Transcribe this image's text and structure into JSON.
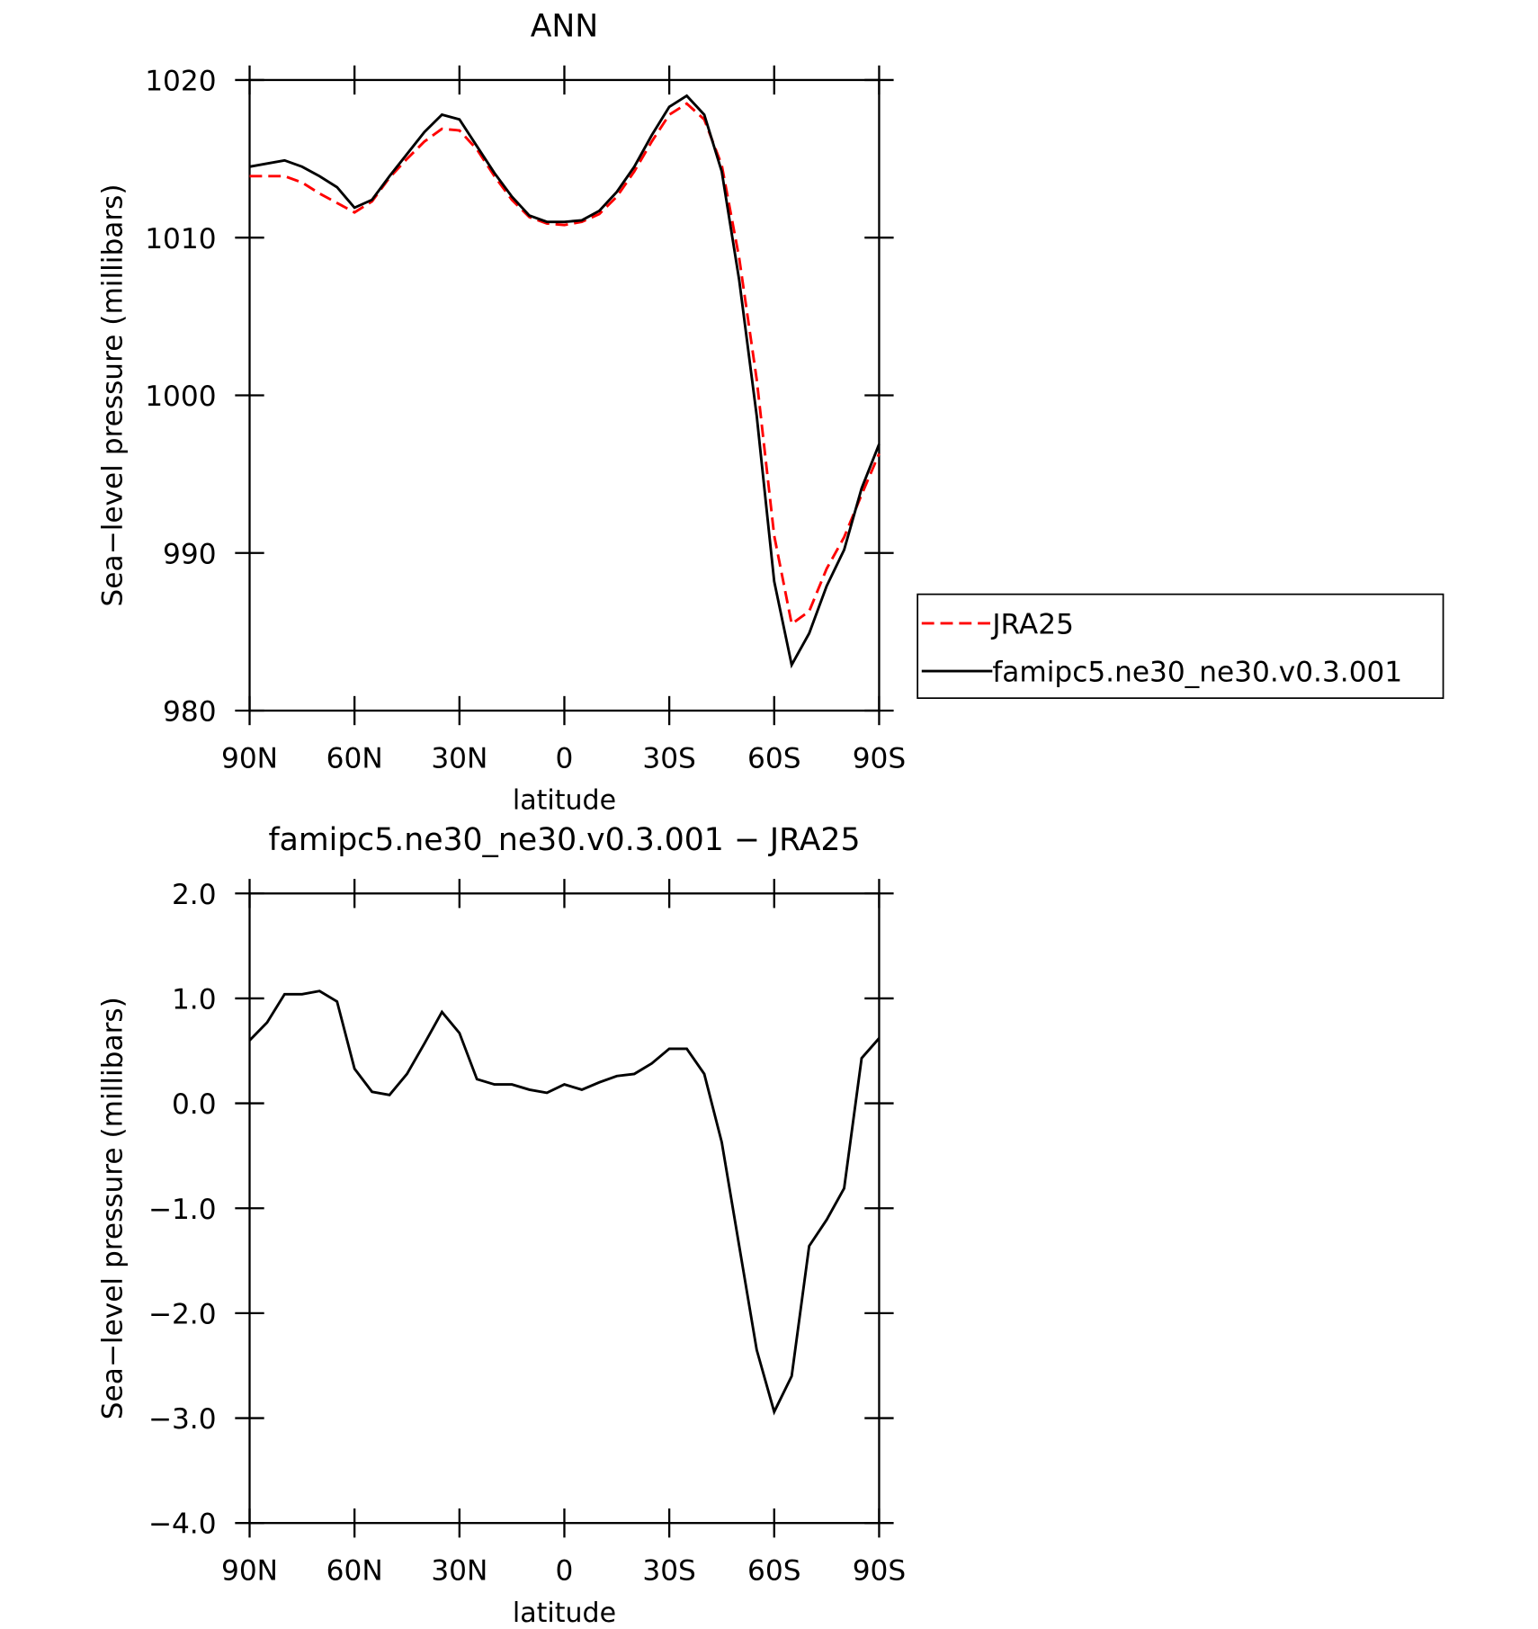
{
  "chart_data": [
    {
      "type": "line",
      "title": "ANN",
      "xlabel": "latitude",
      "ylabel": "Sea−level pressure (millibars)",
      "x": [
        90,
        85,
        80,
        75,
        70,
        65,
        60,
        55,
        50,
        45,
        40,
        35,
        30,
        25,
        20,
        15,
        10,
        5,
        0,
        -5,
        -10,
        -15,
        -20,
        -25,
        -30,
        -35,
        -40,
        -45,
        -50,
        -55,
        -60,
        -65,
        -70,
        -75,
        -80,
        -85,
        -90
      ],
      "series": [
        {
          "name": "JRA25",
          "color": "#ff0000",
          "dash": true,
          "values": [
            1013.9,
            1013.9,
            1013.9,
            1013.5,
            1012.8,
            1012.2,
            1011.6,
            1012.3,
            1013.8,
            1015.0,
            1016.1,
            1016.9,
            1016.8,
            1015.6,
            1013.9,
            1012.4,
            1011.3,
            1010.9,
            1010.8,
            1011.0,
            1011.5,
            1012.6,
            1014.2,
            1016.1,
            1017.8,
            1018.5,
            1017.5,
            1014.6,
            1008.7,
            1001.0,
            991.1,
            985.5,
            986.3,
            989.0,
            991.0,
            993.7,
            996.3
          ]
        },
        {
          "name": "famipc5.ne30_ne30.v0.3.001",
          "color": "#000000",
          "dash": false,
          "values": [
            1014.5,
            1014.7,
            1014.9,
            1014.5,
            1013.9,
            1013.2,
            1011.9,
            1012.4,
            1013.9,
            1015.3,
            1016.7,
            1017.8,
            1017.5,
            1015.8,
            1014.1,
            1012.6,
            1011.4,
            1011.0,
            1011.0,
            1011.1,
            1011.7,
            1012.9,
            1014.5,
            1016.5,
            1018.3,
            1019.0,
            1017.8,
            1014.2,
            1007.3,
            998.7,
            988.2,
            982.9,
            984.9,
            987.9,
            990.2,
            994.1,
            996.9
          ]
        }
      ],
      "xlim": [
        90,
        -90
      ],
      "xticks": [
        {
          "value": 90,
          "label": "90N"
        },
        {
          "value": 60,
          "label": "60N"
        },
        {
          "value": 30,
          "label": "30N"
        },
        0,
        {
          "value": -30,
          "label": "30S"
        },
        {
          "value": -60,
          "label": "60S"
        },
        {
          "value": -90,
          "label": "90S"
        }
      ],
      "ylim": [
        980,
        1020
      ],
      "yticks": [
        980,
        990,
        1000,
        1010,
        1020
      ],
      "legend": "right"
    },
    {
      "type": "line",
      "title": "famipc5.ne30_ne30.v0.3.001 − JRA25",
      "xlabel": "latitude",
      "ylabel": "Sea−level pressure (millibars)",
      "x": [
        90,
        85,
        80,
        75,
        70,
        65,
        60,
        55,
        50,
        45,
        40,
        35,
        30,
        25,
        20,
        15,
        10,
        5,
        0,
        -5,
        -10,
        -15,
        -20,
        -25,
        -30,
        -35,
        -40,
        -45,
        -50,
        -55,
        -60,
        -65,
        -70,
        -75,
        -80,
        -85,
        -90
      ],
      "series": [
        {
          "color": "#000000",
          "dash": false,
          "values": [
            0.6,
            0.77,
            1.04,
            1.04,
            1.07,
            0.97,
            0.33,
            0.11,
            0.08,
            0.28,
            0.57,
            0.87,
            0.67,
            0.23,
            0.18,
            0.18,
            0.13,
            0.1,
            0.18,
            0.13,
            0.2,
            0.26,
            0.28,
            0.38,
            0.52,
            0.52,
            0.28,
            -0.37,
            -1.36,
            -2.35,
            -2.94,
            -2.6,
            -1.36,
            -1.11,
            -0.81,
            0.43,
            0.62
          ]
        }
      ],
      "xlim": [
        90,
        -90
      ],
      "xticks": [
        {
          "value": 90,
          "label": "90N"
        },
        {
          "value": 60,
          "label": "60N"
        },
        {
          "value": 30,
          "label": "30N"
        },
        0,
        {
          "value": -30,
          "label": "30S"
        },
        {
          "value": -60,
          "label": "60S"
        },
        {
          "value": -90,
          "label": "90S"
        }
      ],
      "ylim": [
        -4,
        2
      ],
      "yticks": [
        {
          "value": -4,
          "label": "−4.0"
        },
        {
          "value": -3,
          "label": "−3.0"
        },
        {
          "value": -2,
          "label": "−2.0"
        },
        {
          "value": -1,
          "label": "−1.0"
        },
        {
          "value": 0,
          "label": "0.0"
        },
        {
          "value": 1,
          "label": "1.0"
        },
        {
          "value": 2,
          "label": "2.0"
        }
      ]
    }
  ]
}
